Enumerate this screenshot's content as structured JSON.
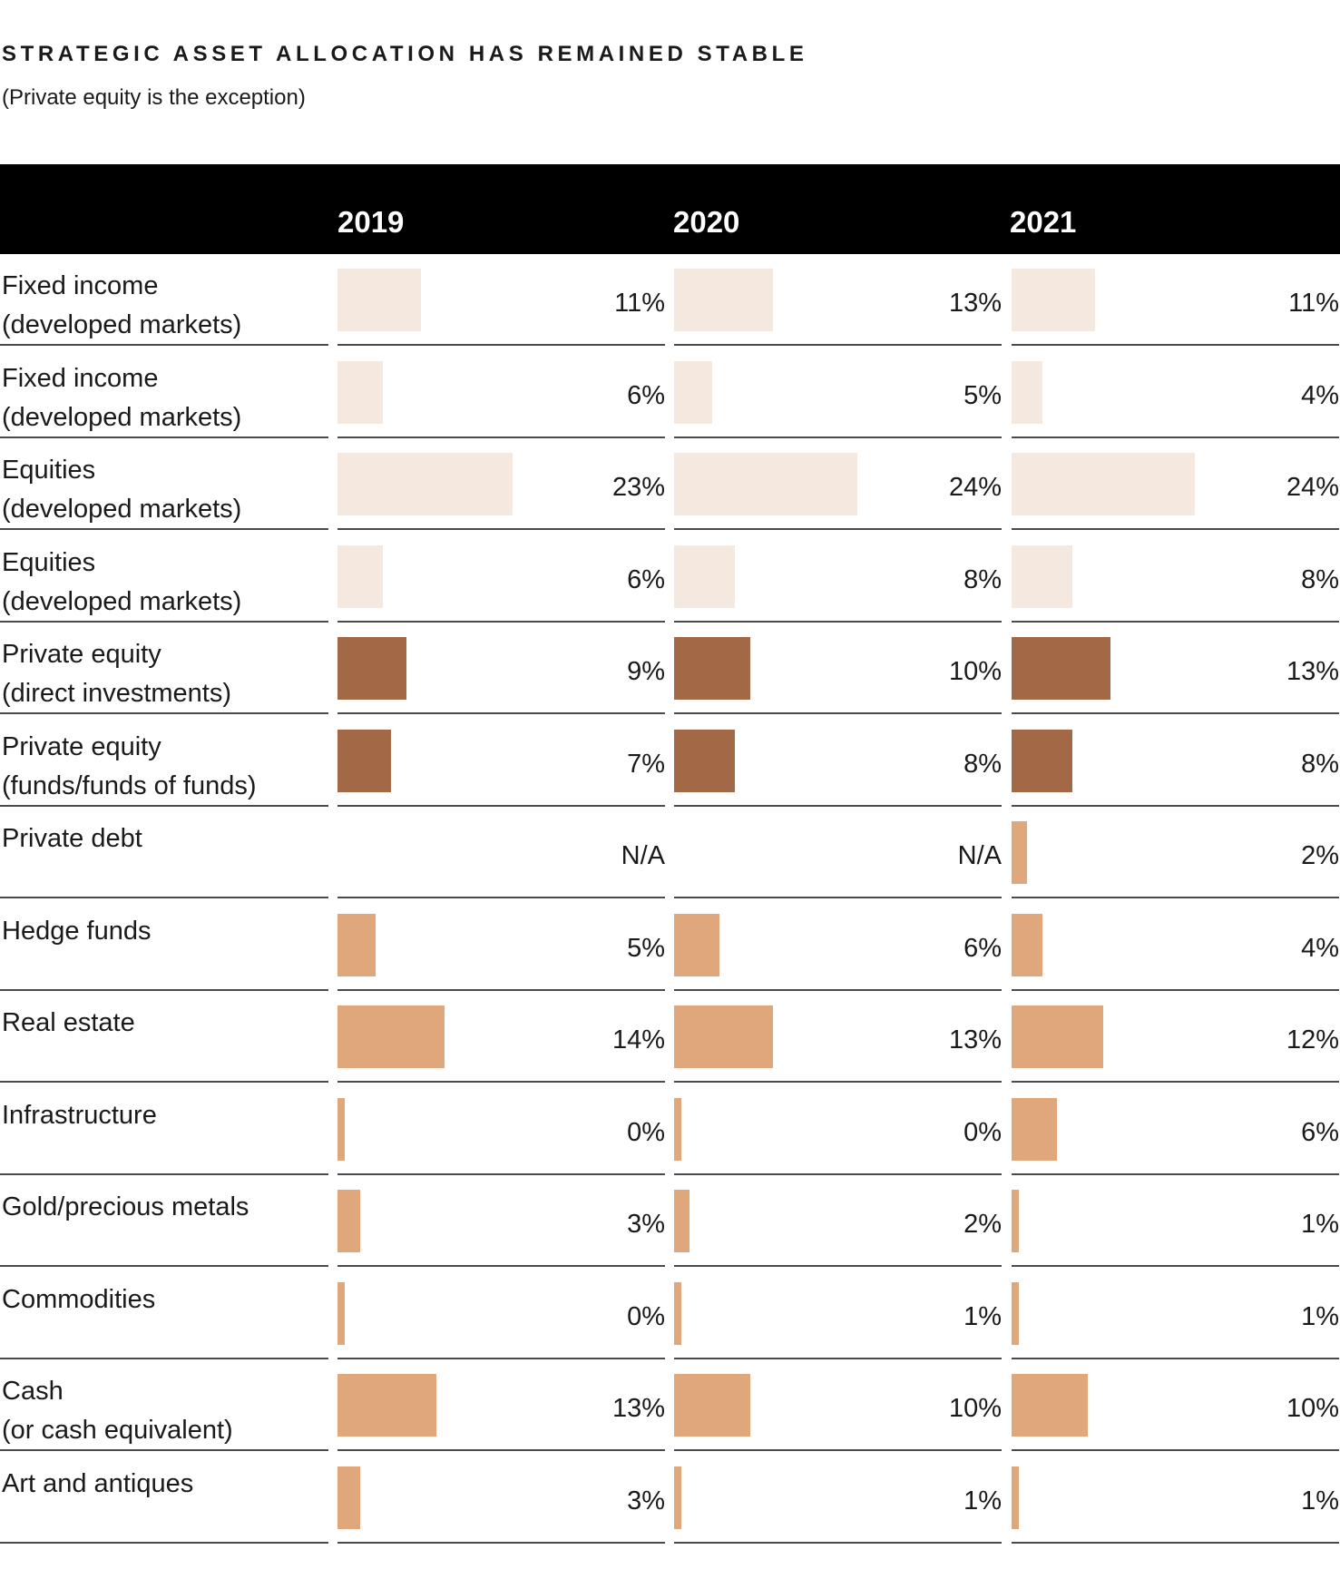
{
  "chart_data": {
    "type": "bar",
    "title": "STRATEGIC ASSET ALLOCATION HAS REMAINED STABLE",
    "subtitle": "(Private equity is the exception)",
    "years": [
      "2019",
      "2020",
      "2021"
    ],
    "rows": [
      {
        "label": "Fixed income\n(developed markets)",
        "group": "light",
        "values": [
          11,
          13,
          11
        ],
        "labels": [
          "11%",
          "13%",
          "11%"
        ]
      },
      {
        "label": "Fixed income\n(developed markets)",
        "group": "light",
        "values": [
          6,
          5,
          4
        ],
        "labels": [
          "6%",
          "5%",
          "4%"
        ]
      },
      {
        "label": "Equities\n(developed markets)",
        "group": "light",
        "values": [
          23,
          24,
          24
        ],
        "labels": [
          "23%",
          "24%",
          "24%"
        ]
      },
      {
        "label": "Equities\n(developed markets)",
        "group": "light",
        "values": [
          6,
          8,
          8
        ],
        "labels": [
          "6%",
          "8%",
          "8%"
        ]
      },
      {
        "label": "Private equity\n(direct investments)",
        "group": "dark",
        "values": [
          9,
          10,
          13
        ],
        "labels": [
          "9%",
          "10%",
          "13%"
        ]
      },
      {
        "label": "Private equity\n(funds/funds of funds)",
        "group": "dark",
        "values": [
          7,
          8,
          8
        ],
        "labels": [
          "7%",
          "8%",
          "8%"
        ]
      },
      {
        "label": "Private debt",
        "group": "medium",
        "values": [
          null,
          null,
          2
        ],
        "labels": [
          "N/A",
          "N/A",
          "2%"
        ]
      },
      {
        "label": "Hedge funds",
        "group": "medium",
        "values": [
          5,
          6,
          4
        ],
        "labels": [
          "5%",
          "6%",
          "4%"
        ]
      },
      {
        "label": "Real estate",
        "group": "medium",
        "values": [
          14,
          13,
          12
        ],
        "labels": [
          "14%",
          "13%",
          "12%"
        ]
      },
      {
        "label": "Infrastructure",
        "group": "medium",
        "values": [
          0,
          0,
          6
        ],
        "labels": [
          "0%",
          "0%",
          "6%"
        ]
      },
      {
        "label": "Gold/precious metals",
        "group": "medium",
        "values": [
          3,
          2,
          1
        ],
        "labels": [
          "3%",
          "2%",
          "1%"
        ]
      },
      {
        "label": "Commodities",
        "group": "medium",
        "values": [
          0,
          1,
          1
        ],
        "labels": [
          "0%",
          "1%",
          "1%"
        ]
      },
      {
        "label": "Cash\n(or cash equivalent)",
        "group": "medium",
        "values": [
          13,
          10,
          10
        ],
        "labels": [
          "13%",
          "10%",
          "10%"
        ]
      },
      {
        "label": "Art and antiques",
        "group": "medium",
        "values": [
          3,
          1,
          1
        ],
        "labels": [
          "3%",
          "1%",
          "1%"
        ]
      }
    ]
  },
  "colors": {
    "light": "#f5e8de",
    "dark": "#a36947",
    "medium": "#e0a67c",
    "header": "#000000",
    "rule": "#4a4a4a"
  }
}
